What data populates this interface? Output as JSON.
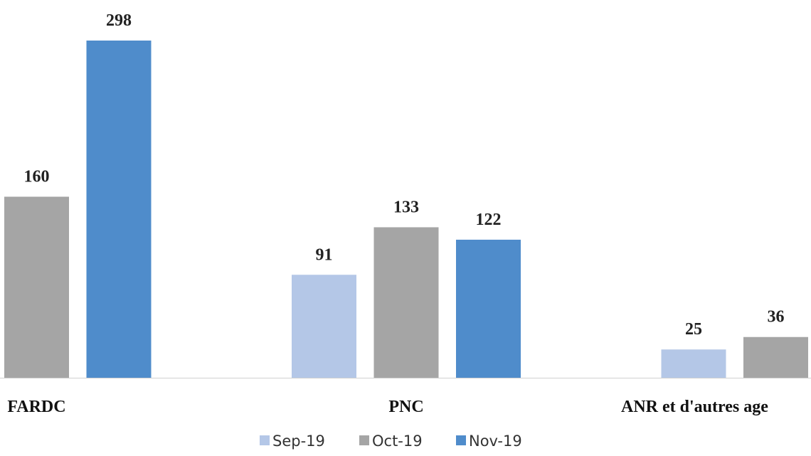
{
  "chart_data": {
    "type": "bar",
    "title": "",
    "xlabel": "",
    "ylabel": "",
    "categories": [
      "FARDC",
      "PNC",
      "ANR et d'autres age"
    ],
    "series": [
      {
        "name": "Sep-19",
        "color": "#b4c7e7",
        "values": [
          null,
          91,
          25
        ]
      },
      {
        "name": "Oct-19",
        "color": "#a5a5a5",
        "values": [
          160,
          133,
          36
        ]
      },
      {
        "name": "Nov-19",
        "color": "#4f8ccb",
        "values": [
          298,
          122,
          null
        ]
      }
    ],
    "ylim": [
      0,
      298
    ],
    "grid": false,
    "legend": "bottom"
  }
}
